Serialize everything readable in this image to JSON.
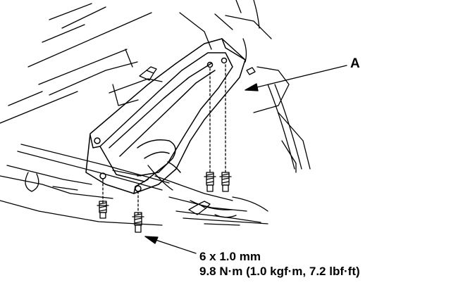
{
  "diagram": {
    "part_callout": "A",
    "fastener_spec": {
      "size": "6 x 1.0 mm",
      "torque": "9.8 N·m (1.0 kgf·m, 7.2 lbf·ft)"
    },
    "bolt_count": 4,
    "colors": {
      "line": "#000000",
      "background": "#ffffff"
    }
  }
}
